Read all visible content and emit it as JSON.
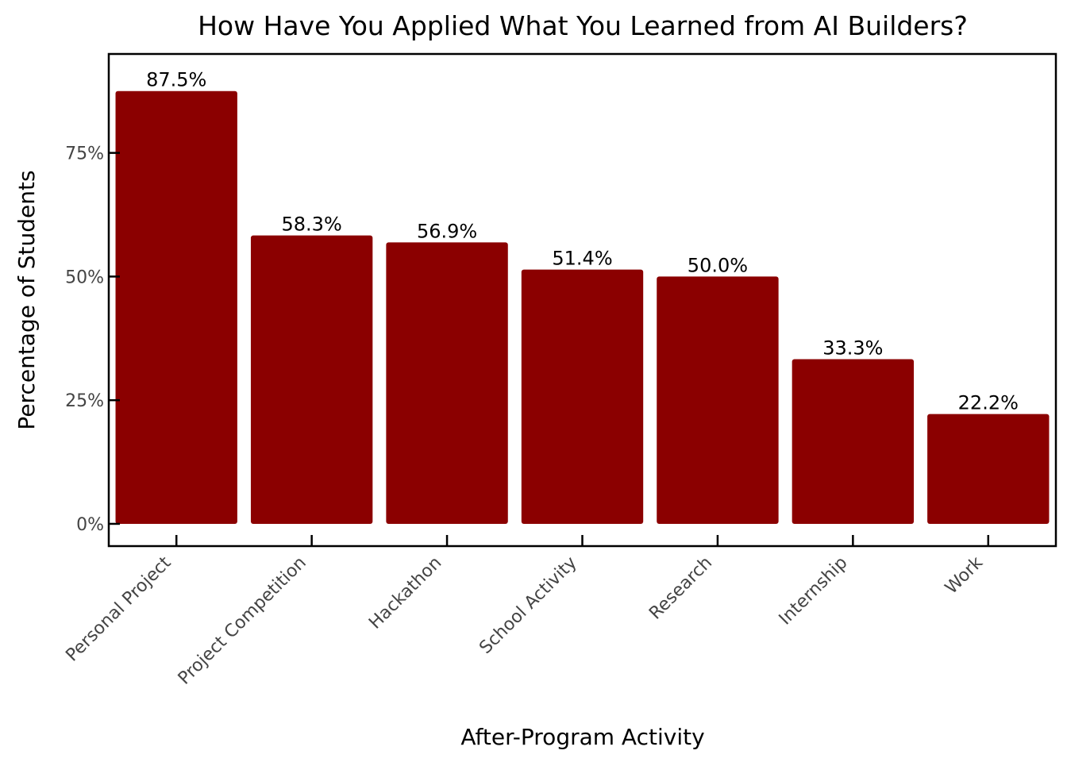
{
  "chart_data": {
    "type": "bar",
    "title": "How Have You Applied What You Learned from AI Builders?",
    "xlabel": "After-Program Activity",
    "ylabel": "Percentage of Students",
    "categories": [
      "Personal Project",
      "Project Competition",
      "Hackathon",
      "School Activity",
      "Research",
      "Internship",
      "Work"
    ],
    "values": [
      87.5,
      58.3,
      56.9,
      51.4,
      50.0,
      33.3,
      22.2
    ],
    "value_labels": [
      "87.5%",
      "58.3%",
      "56.9%",
      "51.4%",
      "50.0%",
      "33.3%",
      "22.2%"
    ],
    "y_ticks": [
      0,
      25,
      50,
      75
    ],
    "y_tick_labels": [
      "0%",
      "25%",
      "50%",
      "75%"
    ],
    "ylim": [
      -4.5,
      95
    ],
    "bar_color": "#8b0000",
    "grid": false,
    "legend": false
  }
}
